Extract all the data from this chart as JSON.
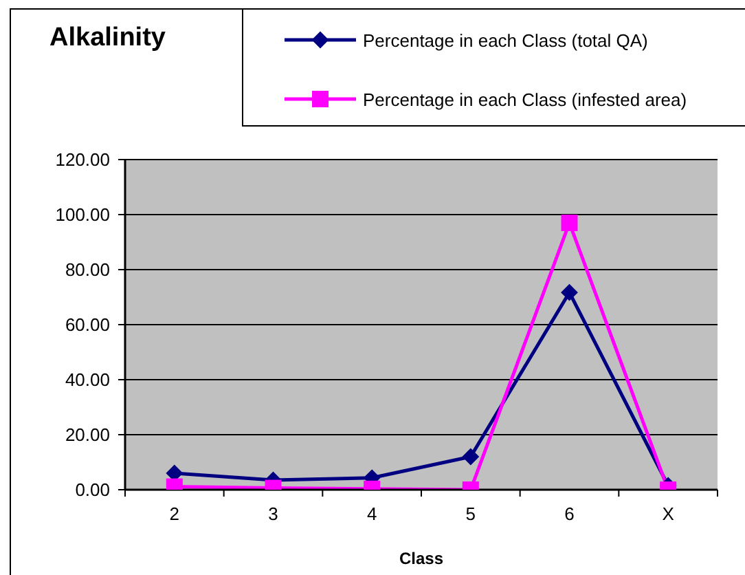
{
  "chart_data": {
    "type": "line",
    "title": "Alkalinity",
    "xlabel": "Class",
    "categories": [
      "2",
      "3",
      "4",
      "5",
      "6",
      "X"
    ],
    "series": [
      {
        "name": "Percentage in each Class (total QA)",
        "color": "#000080",
        "marker": "diamond",
        "values": [
          6.0,
          3.5,
          4.3,
          12.0,
          71.7,
          1.5
        ]
      },
      {
        "name": "Percentage in each Class (infested area)",
        "color": "#ff00ff",
        "marker": "square",
        "values": [
          1.1,
          0.6,
          0.3,
          0.0,
          97.0,
          0.0
        ]
      }
    ],
    "ylim": [
      0,
      120
    ],
    "yticks": [
      {
        "value": 0,
        "label": "0.00"
      },
      {
        "value": 20,
        "label": "20.00"
      },
      {
        "value": 40,
        "label": "40.00"
      },
      {
        "value": 60,
        "label": "60.00"
      },
      {
        "value": 80,
        "label": "80.00"
      },
      {
        "value": 100,
        "label": "100.00"
      },
      {
        "value": 120,
        "label": "120.00"
      }
    ],
    "grid": "y",
    "legend": "top right",
    "line_style": "solid"
  }
}
